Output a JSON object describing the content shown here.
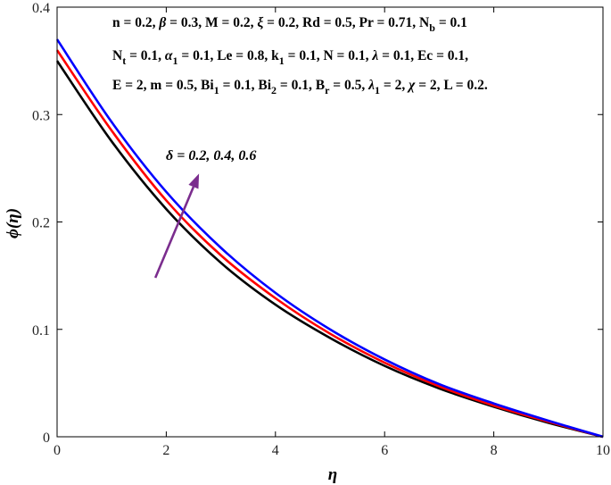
{
  "chart_data": {
    "type": "line",
    "title": "",
    "xlabel": "η",
    "ylabel": "ϕ(η)",
    "xlim": [
      0,
      10
    ],
    "ylim": [
      0,
      0.4
    ],
    "xticks": [
      0,
      2,
      4,
      6,
      8,
      10
    ],
    "xtick_labels": [
      "0",
      "2",
      "4",
      "6",
      "8",
      "10"
    ],
    "yticks": [
      0,
      0.1,
      0.2,
      0.3,
      0.4
    ],
    "ytick_labels": [
      "0",
      "0.1",
      "0.2",
      "0.3",
      "0.4"
    ],
    "grid": false,
    "x": [
      0,
      1,
      2,
      3,
      4,
      5,
      6,
      7,
      8,
      9,
      10
    ],
    "series": [
      {
        "color": "#000000",
        "values": [
          0.35,
          0.275,
          0.212,
          0.162,
          0.123,
          0.092,
          0.066,
          0.045,
          0.028,
          0.013,
          0.0
        ]
      },
      {
        "color": "#ff0000",
        "values": [
          0.36,
          0.285,
          0.22,
          0.169,
          0.129,
          0.096,
          0.069,
          0.047,
          0.029,
          0.014,
          0.0
        ]
      },
      {
        "color": "#0000ff",
        "values": [
          0.37,
          0.293,
          0.228,
          0.176,
          0.134,
          0.1,
          0.072,
          0.049,
          0.031,
          0.015,
          0.0
        ]
      }
    ],
    "parameters": [
      [
        {
          "t": "n = 0.2, "
        },
        {
          "t": "β",
          "i": true
        },
        {
          "t": " = 0.3, M = 0.2, "
        },
        {
          "t": "ξ",
          "i": true
        },
        {
          "t": " = 0.2, Rd = 0.5, Pr = 0.71, N"
        },
        {
          "t": "b",
          "sub": true
        },
        {
          "t": " = 0.1"
        }
      ],
      [
        {
          "t": "N"
        },
        {
          "t": "t",
          "sub": true
        },
        {
          "t": " = 0.1, "
        },
        {
          "t": "α",
          "i": true
        },
        {
          "t": "1",
          "sub": true
        },
        {
          "t": " = 0.1, Le = 0.8, k"
        },
        {
          "t": "1",
          "sub": true
        },
        {
          "t": " = 0.1, N = 0.1, "
        },
        {
          "t": "λ",
          "i": true
        },
        {
          "t": " = 0.1, Ec = 0.1,"
        }
      ],
      [
        {
          "t": "E = 2, m = 0.5, Bi"
        },
        {
          "t": "1",
          "sub": true
        },
        {
          "t": " = 0.1, Bi"
        },
        {
          "t": "2",
          "sub": true
        },
        {
          "t": " = 0.1, B"
        },
        {
          "t": "r",
          "sub": true
        },
        {
          "t": " = 0.5, "
        },
        {
          "t": "λ",
          "i": true
        },
        {
          "t": "1",
          "sub": true
        },
        {
          "t": " = 2, "
        },
        {
          "t": "χ",
          "i": true
        },
        {
          "t": " = 2, L = 0.2."
        }
      ]
    ],
    "annotation": {
      "text": "δ = 0.2, 0.4, 0.6",
      "arrow_from": [
        1.8,
        0.148
      ],
      "arrow_to": [
        2.6,
        0.245
      ],
      "arrow_color": "#7b2d8e"
    }
  }
}
